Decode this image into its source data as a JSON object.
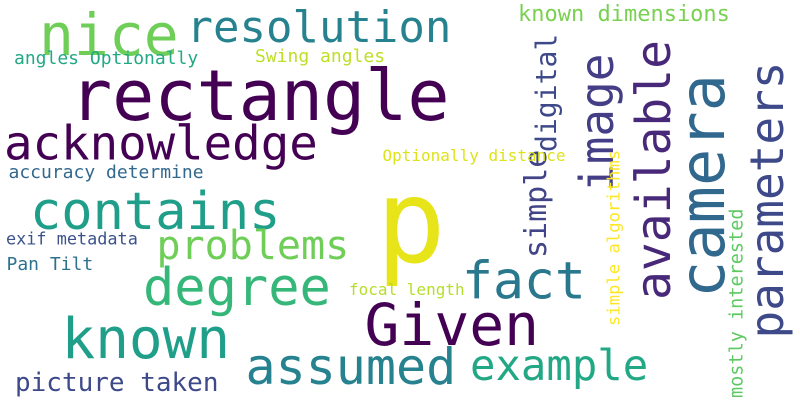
{
  "cloud": {
    "background": "#ffffff",
    "words": [
      {
        "text": "rectangle",
        "color": "#440154"
      },
      {
        "text": "p",
        "color": "#e7e419"
      },
      {
        "text": "camera",
        "color": "#31688e"
      },
      {
        "text": "parameters",
        "color": "#3e4989"
      },
      {
        "text": "resolution",
        "color": "#26828e"
      },
      {
        "text": "nice",
        "color": "#6ece58"
      },
      {
        "text": "acknowledge",
        "color": "#440154"
      },
      {
        "text": "contains",
        "color": "#1f9e89"
      },
      {
        "text": "image",
        "color": "#433e85"
      },
      {
        "text": "available",
        "color": "#482878"
      },
      {
        "text": "degree",
        "color": "#35b779"
      },
      {
        "text": "known",
        "color": "#1f9e89"
      },
      {
        "text": "Given",
        "color": "#440154"
      },
      {
        "text": "fact",
        "color": "#2a788e"
      },
      {
        "text": "assumed",
        "color": "#26828e"
      },
      {
        "text": "example",
        "color": "#22a884"
      },
      {
        "text": "problems",
        "color": "#6ece58"
      },
      {
        "text": "picture taken",
        "color": "#3e4989"
      },
      {
        "text": "digital",
        "color": "#3e4989"
      },
      {
        "text": "simple",
        "color": "#414487"
      },
      {
        "text": "known dimensions",
        "color": "#7ad151"
      },
      {
        "text": "Swing angles",
        "color": "#bddf26"
      },
      {
        "text": "angles Optionally",
        "color": "#22a884"
      },
      {
        "text": "Optionally distance",
        "color": "#dde318"
      },
      {
        "text": "accuracy determine",
        "color": "#31688e"
      },
      {
        "text": "exif metadata",
        "color": "#3b528b"
      },
      {
        "text": "Pan Tilt",
        "color": "#2c728e"
      },
      {
        "text": "focal length",
        "color": "#b5de2b"
      },
      {
        "text": "simple algorithms",
        "color": "#fde725"
      },
      {
        "text": "mostly interested",
        "color": "#5ec962"
      }
    ]
  }
}
